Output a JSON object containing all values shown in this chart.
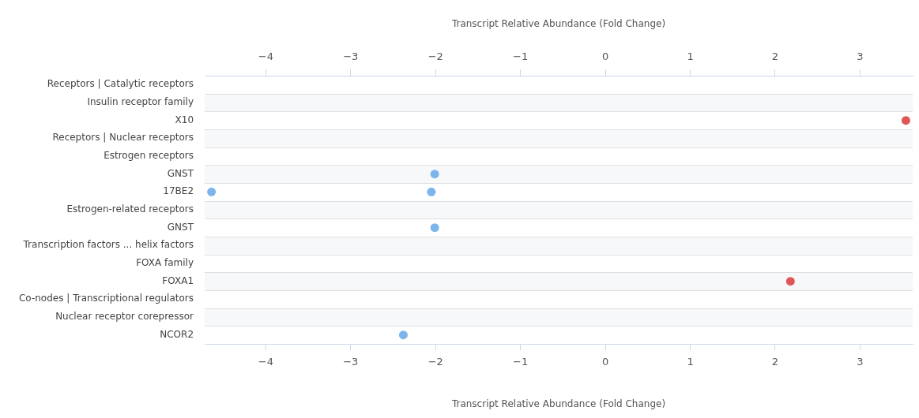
{
  "chart_data": {
    "type": "scatter",
    "orientation": "horizontal",
    "categories": [
      "Receptors | Catalytic receptors",
      "Insulin receptor family",
      "X10",
      "Receptors | Nuclear receptors",
      "Estrogen receptors",
      "GNST",
      "17BE2",
      "Estrogen-related receptors",
      "GNST",
      "Transcription factors ... helix factors",
      "FOXA family",
      "FOXA1",
      "Co-nodes | Transcriptional regulators",
      "Nuclear receptor corepressor",
      "NCOR2"
    ],
    "series": [
      {
        "values": [
          null,
          null,
          3.54,
          null,
          null,
          -2.01,
          -2.05,
          null,
          -2.01,
          null,
          null,
          2.18,
          null,
          null,
          -2.38
        ],
        "colors": [
          null,
          null,
          "#e15555",
          null,
          null,
          "#7cb5ec",
          "#7cb5ec",
          null,
          "#7cb5ec",
          null,
          null,
          "#e15555",
          null,
          null,
          "#7cb5ec"
        ]
      },
      {
        "color": "#7cb5ec",
        "values": [
          null,
          null,
          null,
          null,
          null,
          null,
          -4.64,
          null,
          null,
          null,
          null,
          null,
          null,
          null,
          null
        ]
      }
    ],
    "xlabel": "Transcript Relative Abundance (Fold Change)",
    "x2label": "Transcript Relative Abundance (Fold Change)",
    "xlim": [
      -4.72,
      3.62
    ],
    "xticks": [
      -4,
      -3,
      -2,
      -1,
      0,
      1,
      2,
      3
    ],
    "x2lim": [
      -4.72,
      3.62
    ],
    "x2ticks": [
      -4,
      -3,
      -2,
      -1,
      0,
      1,
      2,
      3
    ],
    "grid": "y",
    "legend": false,
    "marker": "circle"
  }
}
